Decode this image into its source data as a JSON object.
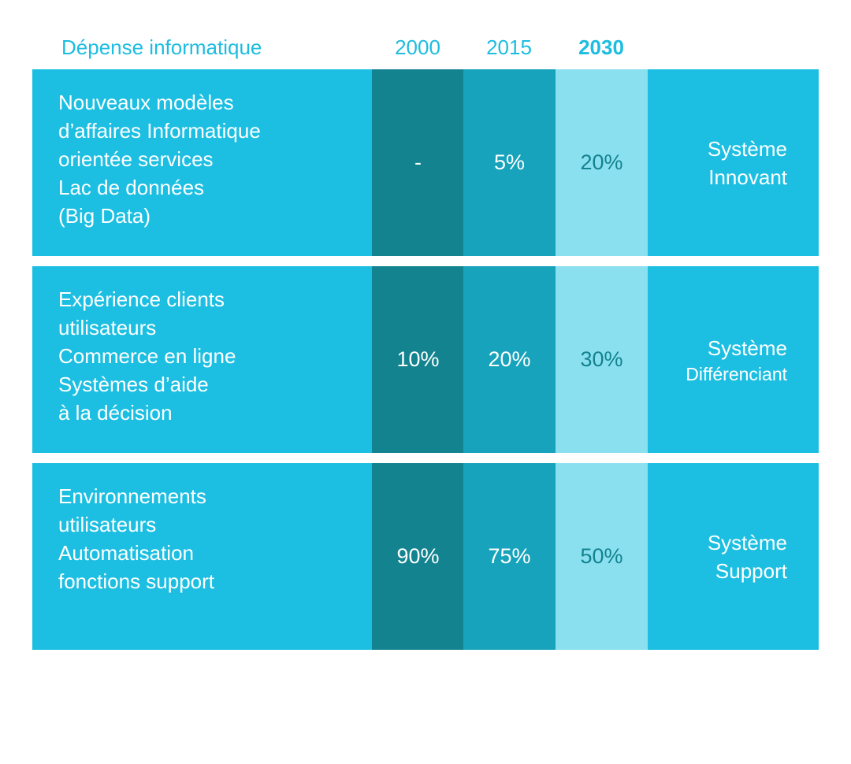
{
  "colors": {
    "header": "#1cbde0",
    "base": "#1cbfe2",
    "col_2000": "#12838f",
    "col_2015": "#16a3bb",
    "col_2030": "#8be0f0",
    "col_2030_text": "#12838f"
  },
  "chart_data": {
    "type": "table",
    "title": "Dépense informatique",
    "columns": [
      "2000",
      "2015",
      "2030"
    ],
    "rows": [
      {
        "description": [
          "Nouveaux modèles",
          "d’affaires Informatique",
          "orientée services",
          "Lac de données",
          "(Big Data)"
        ],
        "values": [
          "-",
          "5%",
          "20%"
        ],
        "system": [
          "Système",
          "Innovant"
        ]
      },
      {
        "description": [
          "Expérience clients",
          "utilisateurs",
          "Commerce en ligne",
          "Systèmes d’aide",
          "à la décision"
        ],
        "values": [
          "10%",
          "20%",
          "30%"
        ],
        "system": [
          "Système",
          "Différenciant"
        ]
      },
      {
        "description": [
          "Environnements",
          "utilisateurs",
          "Automatisation",
          "fonctions support"
        ],
        "values": [
          "90%",
          "75%",
          "50%"
        ],
        "system": [
          "Système",
          "Support"
        ]
      }
    ]
  }
}
